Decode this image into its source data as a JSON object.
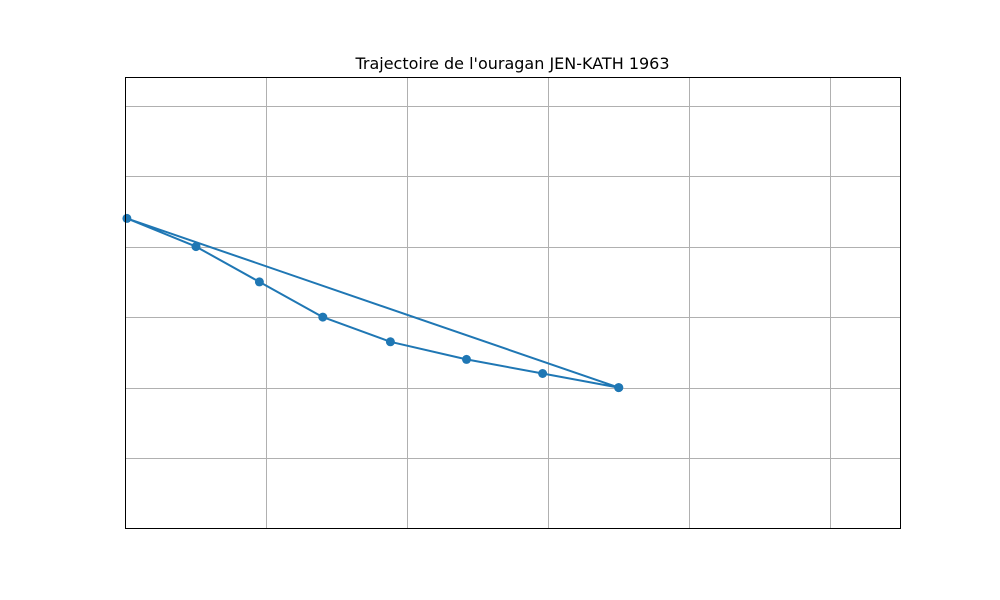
{
  "chart_data": {
    "type": "line",
    "title": "Trajectoire de l'ouragan JEN-KATH 1963",
    "xlabel": "",
    "ylabel": "",
    "xlim": [
      0,
      5.5
    ],
    "ylim": [
      0,
      6.4
    ],
    "grid": true,
    "grid_x": [
      1,
      2,
      3,
      4,
      5
    ],
    "grid_y": [
      1,
      2,
      3,
      4,
      5,
      6
    ],
    "markers": true,
    "color": "#1f77b4",
    "series": [
      {
        "x": [
          3.5,
          2.96,
          2.42,
          1.88,
          1.4,
          0.95,
          0.5,
          0.01,
          3.5
        ],
        "y": [
          2.0,
          2.2,
          2.4,
          2.65,
          3.0,
          3.5,
          4.0,
          4.4,
          2.0
        ]
      }
    ]
  }
}
